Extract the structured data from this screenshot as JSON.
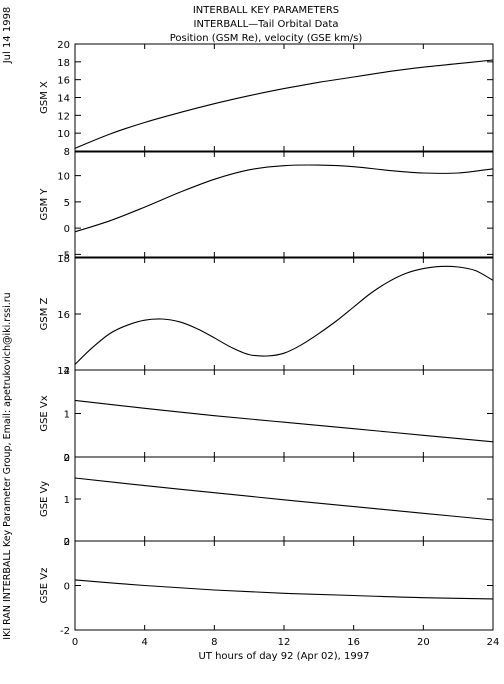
{
  "header": {
    "date": "Jul 14 1998",
    "title_lines": [
      "INTERBALL KEY PARAMETERS",
      "INTERBALL—Tail Orbital Data",
      "Position (GSM Re), velocity (GSE km/s)"
    ],
    "credit": "IKI RAN INTERBALL Key Parameter Group, Email: apetrukovich@iki.rssi.ru"
  },
  "chart_data": {
    "type": "line",
    "x": {
      "label": "UT hours of day  92 (Apr 02), 1997",
      "range": [
        0,
        24
      ],
      "ticks": [
        0,
        4,
        8,
        12,
        16,
        20,
        24
      ]
    },
    "panels": [
      {
        "ylabel": "GSM X",
        "ylim": [
          8,
          20
        ],
        "yticks": [
          8,
          10,
          12,
          14,
          16,
          18,
          20
        ],
        "series": [
          {
            "x": [
              0,
              2,
              4,
              6,
              8,
              10,
              12,
              14,
              16,
              18,
              20,
              22,
              24
            ],
            "values": [
              8.3,
              9.9,
              11.2,
              12.3,
              13.3,
              14.2,
              15.0,
              15.7,
              16.3,
              16.9,
              17.4,
              17.8,
              18.2
            ]
          }
        ]
      },
      {
        "ylabel": "GSM Y",
        "ylim": [
          -5.5,
          14.5
        ],
        "yticks": [
          -5,
          0,
          5,
          10
        ],
        "series": [
          {
            "x": [
              0,
              2,
              4,
              6,
              8,
              10,
              12,
              14,
              16,
              18,
              20,
              22,
              24
            ],
            "values": [
              -0.7,
              1.4,
              4.0,
              6.8,
              9.3,
              11.1,
              11.9,
              12.0,
              11.7,
              11.0,
              10.5,
              10.5,
              11.3
            ]
          }
        ]
      },
      {
        "ylabel": "GSM Z",
        "ylim": [
          14,
          18
        ],
        "yticks": [
          14,
          16,
          18
        ],
        "series": [
          {
            "x": [
              0,
              1,
              2,
              3,
              4,
              5,
              6,
              7,
              8,
              9,
              10,
              11,
              12,
              13,
              14,
              15,
              16,
              17,
              18,
              19,
              20,
              21,
              22,
              23,
              24
            ],
            "values": [
              14.2,
              14.8,
              15.3,
              15.6,
              15.78,
              15.82,
              15.72,
              15.48,
              15.15,
              14.8,
              14.55,
              14.5,
              14.6,
              14.9,
              15.3,
              15.75,
              16.25,
              16.75,
              17.15,
              17.45,
              17.62,
              17.7,
              17.68,
              17.55,
              17.2
            ]
          }
        ]
      },
      {
        "ylabel": "GSE Vx",
        "ylim": [
          0,
          2
        ],
        "yticks": [
          0,
          1,
          2
        ],
        "series": [
          {
            "x": [
              0,
              4,
              8,
              12,
              16,
              20,
              24
            ],
            "values": [
              1.3,
              1.12,
              0.95,
              0.8,
              0.65,
              0.5,
              0.35
            ]
          }
        ]
      },
      {
        "ylabel": "GSE Vy",
        "ylim": [
          0,
          2
        ],
        "yticks": [
          0,
          1,
          2
        ],
        "series": [
          {
            "x": [
              0,
              4,
              8,
              12,
              16,
              20,
              24
            ],
            "values": [
              1.5,
              1.32,
              1.15,
              0.98,
              0.82,
              0.66,
              0.5
            ]
          }
        ]
      },
      {
        "ylabel": "GSE Vz",
        "ylim": [
          -2,
          2
        ],
        "yticks": [
          -2,
          0,
          2
        ],
        "series": [
          {
            "x": [
              0,
              4,
              8,
              12,
              16,
              20,
              24
            ],
            "values": [
              0.25,
              0.0,
              -0.2,
              -0.35,
              -0.45,
              -0.55,
              -0.6
            ]
          }
        ]
      }
    ]
  }
}
